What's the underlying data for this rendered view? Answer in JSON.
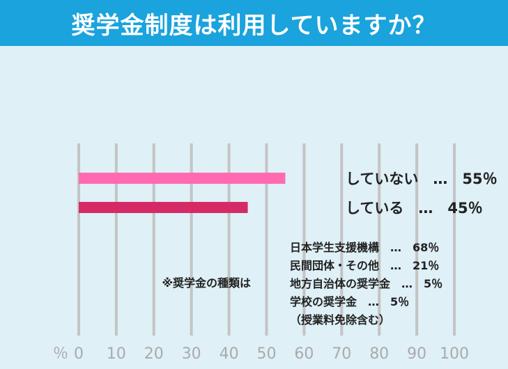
{
  "header": {
    "title": "奨学金制度は利用していますか？"
  },
  "colors": {
    "header_bg": "#1aa3dc",
    "panel_bg": "#dff0f7",
    "grid": "#c4c4c4"
  },
  "chart_data": {
    "type": "bar",
    "orientation": "horizontal",
    "title": "奨学金制度は利用していますか？",
    "categories": [
      "していない",
      "している"
    ],
    "values": [
      55,
      45
    ],
    "colors": [
      "#ff6ab0",
      "#d62a66"
    ],
    "bar_labels": [
      "していない　…　55％",
      "している　…　45％"
    ],
    "xlabel": "％",
    "xlim": [
      0,
      100
    ],
    "xticks": [
      0,
      10,
      20,
      30,
      40,
      50,
      60,
      70,
      80,
      90,
      100
    ],
    "grid": true
  },
  "annotation": {
    "heading": "※奨学金の種類は",
    "lines": [
      "日本学生支援機構　…　68％",
      "民間団体・その他　…　21％",
      "地方自治体の奨学金　…　5％",
      "学校の奨学金　…　5％",
      "（授業料免除含む）"
    ]
  }
}
